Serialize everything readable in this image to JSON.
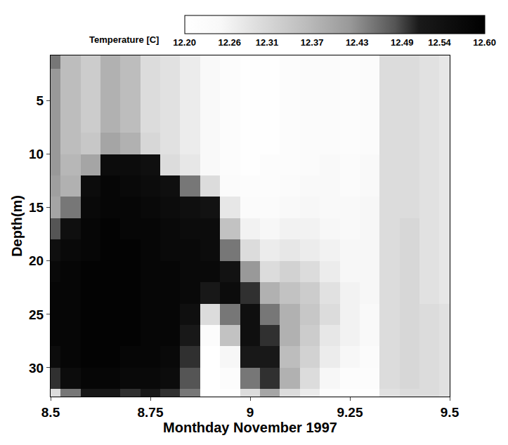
{
  "chart_data": {
    "type": "heatmap",
    "x_label": "Monthday November 1997",
    "y_label": "Depth(m)",
    "colorbar_title": "Temperature [C]",
    "x": [
      8.5,
      8.55,
      8.6,
      8.65,
      8.7,
      8.75,
      8.8,
      8.85,
      8.9,
      8.95,
      9.0,
      9.05,
      9.1,
      9.15,
      9.2,
      9.25,
      9.3,
      9.35,
      9.4,
      9.45,
      9.5
    ],
    "y": [
      1,
      3,
      5,
      7,
      9,
      11,
      13,
      15,
      17,
      19,
      21,
      23,
      25,
      27,
      29,
      31,
      33
    ],
    "z": [
      [
        12.45,
        12.36,
        12.33,
        12.38,
        12.36,
        12.3,
        12.29,
        12.27,
        12.24,
        12.22,
        12.21,
        12.21,
        12.22,
        12.23,
        12.23,
        12.22,
        12.23,
        12.3,
        12.3,
        12.29,
        12.28
      ],
      [
        12.42,
        12.36,
        12.33,
        12.38,
        12.36,
        12.3,
        12.29,
        12.27,
        12.24,
        12.22,
        12.21,
        12.21,
        12.22,
        12.23,
        12.23,
        12.22,
        12.23,
        12.3,
        12.3,
        12.29,
        12.28
      ],
      [
        12.42,
        12.36,
        12.33,
        12.38,
        12.36,
        12.3,
        12.29,
        12.27,
        12.24,
        12.22,
        12.21,
        12.21,
        12.22,
        12.23,
        12.23,
        12.22,
        12.23,
        12.3,
        12.3,
        12.29,
        12.28
      ],
      [
        12.42,
        12.36,
        12.33,
        12.38,
        12.36,
        12.3,
        12.29,
        12.27,
        12.24,
        12.22,
        12.21,
        12.21,
        12.22,
        12.23,
        12.23,
        12.22,
        12.23,
        12.3,
        12.3,
        12.29,
        12.28
      ],
      [
        12.42,
        12.36,
        12.34,
        12.4,
        12.38,
        12.31,
        12.29,
        12.27,
        12.24,
        12.22,
        12.21,
        12.21,
        12.22,
        12.23,
        12.23,
        12.22,
        12.23,
        12.3,
        12.3,
        12.29,
        12.28
      ],
      [
        12.42,
        12.37,
        12.4,
        12.56,
        12.56,
        12.55,
        12.3,
        12.28,
        12.24,
        12.22,
        12.21,
        12.22,
        12.22,
        12.23,
        12.24,
        12.23,
        12.24,
        12.3,
        12.3,
        12.29,
        12.28
      ],
      [
        12.41,
        12.38,
        12.56,
        12.58,
        12.57,
        12.56,
        12.55,
        12.45,
        12.3,
        12.23,
        12.22,
        12.22,
        12.23,
        12.24,
        12.24,
        12.23,
        12.24,
        12.3,
        12.3,
        12.29,
        12.28
      ],
      [
        12.4,
        12.45,
        12.57,
        12.58,
        12.58,
        12.57,
        12.56,
        12.55,
        12.54,
        12.28,
        12.23,
        12.23,
        12.24,
        12.25,
        12.24,
        12.24,
        12.25,
        12.3,
        12.3,
        12.29,
        12.28
      ],
      [
        12.48,
        12.55,
        12.58,
        12.59,
        12.58,
        12.58,
        12.57,
        12.56,
        12.56,
        12.35,
        12.26,
        12.25,
        12.26,
        12.26,
        12.25,
        12.24,
        12.25,
        12.3,
        12.31,
        12.29,
        12.28
      ],
      [
        12.55,
        12.57,
        12.58,
        12.59,
        12.59,
        12.58,
        12.57,
        12.57,
        12.56,
        12.45,
        12.3,
        12.27,
        12.28,
        12.27,
        12.26,
        12.25,
        12.25,
        12.3,
        12.31,
        12.29,
        12.28
      ],
      [
        12.57,
        12.58,
        12.59,
        12.59,
        12.59,
        12.58,
        12.58,
        12.57,
        12.57,
        12.54,
        12.42,
        12.3,
        12.32,
        12.3,
        12.27,
        12.25,
        12.25,
        12.3,
        12.31,
        12.29,
        12.28
      ],
      [
        12.58,
        12.58,
        12.59,
        12.59,
        12.59,
        12.58,
        12.58,
        12.57,
        12.52,
        12.56,
        12.5,
        12.38,
        12.35,
        12.33,
        12.29,
        12.26,
        12.25,
        12.3,
        12.31,
        12.29,
        12.28
      ],
      [
        12.58,
        12.58,
        12.59,
        12.59,
        12.59,
        12.58,
        12.58,
        12.55,
        12.3,
        12.45,
        12.55,
        12.45,
        12.38,
        12.34,
        12.3,
        12.26,
        12.24,
        12.3,
        12.31,
        12.3,
        12.29
      ],
      [
        12.58,
        12.58,
        12.59,
        12.59,
        12.59,
        12.58,
        12.58,
        12.52,
        12.22,
        12.35,
        12.55,
        12.5,
        12.38,
        12.33,
        12.28,
        12.26,
        12.24,
        12.3,
        12.31,
        12.3,
        12.29
      ],
      [
        12.56,
        12.58,
        12.59,
        12.59,
        12.58,
        12.58,
        12.57,
        12.5,
        12.2,
        12.25,
        12.52,
        12.52,
        12.36,
        12.32,
        12.27,
        12.25,
        12.23,
        12.3,
        12.31,
        12.3,
        12.29
      ],
      [
        12.5,
        12.56,
        12.58,
        12.58,
        12.57,
        12.57,
        12.56,
        12.48,
        12.2,
        12.22,
        12.45,
        12.5,
        12.38,
        12.3,
        12.25,
        12.22,
        12.22,
        12.3,
        12.31,
        12.3,
        12.29
      ],
      [
        12.3,
        12.45,
        12.52,
        12.52,
        12.5,
        12.52,
        12.5,
        12.45,
        12.2,
        12.21,
        12.3,
        12.4,
        12.3,
        12.27,
        12.22,
        12.21,
        12.21,
        12.29,
        12.3,
        12.3,
        12.29
      ]
    ],
    "xlim": [
      8.5,
      9.5
    ],
    "xticks": [
      8.5,
      8.75,
      9,
      9.25,
      9.5
    ],
    "ylim": [
      32.7,
      0.75
    ],
    "yticks": [
      5,
      10,
      15,
      20,
      25,
      30
    ],
    "zlim": [
      12.2,
      12.6
    ],
    "zticks": [
      {
        "value": 12.2,
        "label": "12.20"
      },
      12.26,
      12.31,
      12.37,
      12.43,
      12.49,
      12.54,
      {
        "value": 12.6,
        "label": "12.60"
      }
    ]
  }
}
